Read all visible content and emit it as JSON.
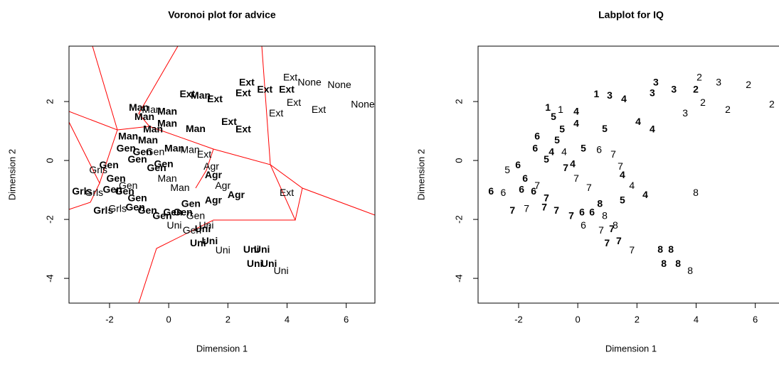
{
  "chart_data": [
    {
      "type": "scatter",
      "title": "Voronoi plot for advice",
      "xlabel": "Dimension 1",
      "ylabel": "Dimension 2",
      "xlim": [
        -3.37,
        6.97
      ],
      "ylim": [
        -4.84,
        3.88
      ],
      "xticks": [
        -2,
        0,
        2,
        4,
        6
      ],
      "yticks": [
        -4,
        -2,
        0,
        2
      ],
      "color": "#000000",
      "voronoi_color": "#ff0000",
      "x": [
        2.64,
        4.11,
        4.76,
        5.77,
        6.56,
        2.52,
        3.25,
        3.99,
        4.23,
        5.07,
        3.63,
        2.52,
        2.04,
        0.63,
        1.08,
        1.56,
        -1.01,
        -0.58,
        -0.82,
        -0.05,
        -0.53,
        -0.05,
        0.91,
        -1.37,
        -0.7,
        0.19,
        0.72,
        1.2,
        -1.44,
        -0.89,
        -0.46,
        -1.06,
        -0.17,
        -2.02,
        -2.38,
        -1.78,
        -0.41,
        -0.05,
        1.51,
        1.44,
        1.83,
        0.38,
        -2.93,
        -2.52,
        -1.9,
        -1.49,
        -1.37,
        -1.06,
        2.28,
        1.51,
        3.99,
        0.75,
        -2.21,
        -1.73,
        -1.13,
        -0.72,
        -0.22,
        0.14,
        0.48,
        0.91,
        1.27,
        0.19,
        0.79,
        1.15,
        0.99,
        1.39,
        1.83,
        2.79,
        3.15,
        2.91,
        3.39,
        3.8
      ],
      "y": [
        2.63,
        2.8,
        2.63,
        2.55,
        1.88,
        2.27,
        2.39,
        2.39,
        1.95,
        1.71,
        1.59,
        1.04,
        1.3,
        2.24,
        2.19,
        2.07,
        1.78,
        1.71,
        1.47,
        1.64,
        1.04,
        1.23,
        1.06,
        0.8,
        0.67,
        0.39,
        0.34,
        0.19,
        0.39,
        0.27,
        0.27,
        0.02,
        -0.14,
        -0.17,
        -0.34,
        -0.63,
        -0.27,
        -0.63,
        -0.51,
        -0.22,
        -0.87,
        -0.94,
        -1.06,
        -1.11,
        -1.01,
        -1.06,
        -0.87,
        -1.3,
        -1.18,
        -1.37,
        -1.11,
        -1.49,
        -1.71,
        -1.66,
        -1.61,
        -1.71,
        -1.9,
        -1.78,
        -1.78,
        -1.9,
        -2.22,
        -2.22,
        -2.39,
        -2.34,
        -2.82,
        -2.75,
        -3.06,
        -3.04,
        -3.04,
        -3.52,
        -3.52,
        -3.76
      ],
      "labels": [
        "Ext",
        "Ext",
        "None",
        "None",
        "None",
        "Ext",
        "Ext",
        "Ext",
        "Ext",
        "Ext",
        "Ext",
        "Ext",
        "Ext",
        "Ext",
        "Man",
        "Ext",
        "Man",
        "Man",
        "Man",
        "Man",
        "Man",
        "Man",
        "Man",
        "Man",
        "Man",
        "Man",
        "Man",
        "Ext",
        "Gen",
        "Gen",
        "Gen",
        "Gen",
        "Gen",
        "Gen",
        "Grls",
        "Gen",
        "Gen",
        "Man",
        "Agr",
        "Agr",
        "Agr",
        "Man",
        "Grls",
        "Grls",
        "Gen",
        "Gen",
        "Gen",
        "Gen",
        "Agr",
        "Agr",
        "Ext",
        "Gen",
        "Grls",
        "Grls",
        "Gen",
        "Gen",
        "Gen",
        "Gen",
        "Gen",
        "Gen",
        "Uni",
        "Uni",
        "Gen",
        "Uni",
        "Uni",
        "Uni",
        "Uni",
        "Uni",
        "Uni",
        "Uni",
        "Uni",
        "Uni"
      ],
      "bold": [
        true,
        false,
        false,
        false,
        false,
        true,
        true,
        true,
        false,
        false,
        false,
        true,
        true,
        true,
        true,
        true,
        true,
        false,
        true,
        true,
        true,
        true,
        true,
        true,
        true,
        true,
        false,
        false,
        true,
        true,
        false,
        true,
        true,
        true,
        false,
        true,
        true,
        false,
        true,
        false,
        false,
        false,
        true,
        false,
        true,
        true,
        false,
        true,
        true,
        true,
        false,
        true,
        true,
        false,
        true,
        true,
        true,
        true,
        true,
        false,
        false,
        false,
        false,
        true,
        true,
        true,
        false,
        true,
        true,
        true,
        true,
        false
      ]
    },
    {
      "type": "scatter",
      "title": "Labplot for IQ",
      "xlabel": "Dimension 1",
      "ylabel": "Dimension 2",
      "xlim": [
        -3.37,
        6.97
      ],
      "ylim": [
        -4.84,
        3.88
      ],
      "xticks": [
        -2,
        0,
        2,
        4,
        6
      ],
      "yticks": [
        -4,
        -2,
        0,
        2
      ],
      "color": "#000000",
      "x": [
        2.64,
        4.11,
        4.76,
        5.77,
        6.56,
        2.52,
        3.25,
        3.99,
        4.23,
        5.07,
        3.63,
        2.52,
        2.04,
        0.63,
        1.08,
        1.56,
        -1.01,
        -0.58,
        -0.82,
        -0.05,
        -0.53,
        -0.05,
        0.91,
        -1.37,
        -0.7,
        0.19,
        0.72,
        1.2,
        -1.44,
        -0.89,
        -0.46,
        -1.06,
        -0.17,
        -2.02,
        -2.38,
        -1.78,
        -0.41,
        -0.05,
        1.51,
        1.44,
        1.83,
        0.38,
        -2.93,
        -2.52,
        -1.9,
        -1.49,
        -1.37,
        -1.06,
        2.28,
        1.51,
        3.99,
        0.75,
        -2.21,
        -1.73,
        -1.13,
        -0.72,
        -0.22,
        0.14,
        0.48,
        0.91,
        1.27,
        0.19,
        0.79,
        1.15,
        0.99,
        1.39,
        1.83,
        2.79,
        3.15,
        2.91,
        3.39,
        3.8
      ],
      "y": [
        2.63,
        2.8,
        2.63,
        2.55,
        1.88,
        2.27,
        2.39,
        2.39,
        1.95,
        1.71,
        1.59,
        1.04,
        1.3,
        2.24,
        2.19,
        2.07,
        1.78,
        1.71,
        1.47,
        1.64,
        1.04,
        1.23,
        1.06,
        0.8,
        0.67,
        0.39,
        0.34,
        0.19,
        0.39,
        0.27,
        0.27,
        0.02,
        -0.14,
        -0.17,
        -0.34,
        -0.63,
        -0.27,
        -0.63,
        -0.51,
        -0.22,
        -0.87,
        -0.94,
        -1.06,
        -1.11,
        -1.01,
        -1.06,
        -0.87,
        -1.3,
        -1.18,
        -1.37,
        -1.11,
        -1.49,
        -1.71,
        -1.66,
        -1.61,
        -1.71,
        -1.9,
        -1.78,
        -1.78,
        -1.9,
        -2.22,
        -2.22,
        -2.39,
        -2.34,
        -2.82,
        -2.75,
        -3.06,
        -3.04,
        -3.04,
        -3.52,
        -3.52,
        -3.76
      ],
      "labels": [
        "3",
        "2",
        "3",
        "2",
        "2",
        "3",
        "3",
        "2",
        "2",
        "2",
        "3",
        "4",
        "4",
        "1",
        "3",
        "4",
        "1",
        "1",
        "5",
        "4",
        "5",
        "4",
        "5",
        "6",
        "5",
        "5",
        "6",
        "7",
        "6",
        "4",
        "4",
        "5",
        "4",
        "6",
        "5",
        "6",
        "7",
        "7",
        "4",
        "7",
        "4",
        "7",
        "6",
        "6",
        "6",
        "6",
        "7",
        "7",
        "4",
        "5",
        "8",
        "8",
        "7",
        "7",
        "7",
        "7",
        "7",
        "6",
        "6",
        "8",
        "8",
        "6",
        "7",
        "7",
        "7",
        "7",
        "7",
        "8",
        "8",
        "8",
        "8",
        "8"
      ],
      "bold": [
        true,
        false,
        false,
        false,
        false,
        true,
        true,
        true,
        false,
        false,
        false,
        true,
        true,
        true,
        true,
        true,
        true,
        false,
        true,
        true,
        true,
        true,
        true,
        true,
        true,
        true,
        false,
        false,
        true,
        true,
        false,
        true,
        true,
        true,
        false,
        true,
        true,
        false,
        true,
        false,
        false,
        false,
        true,
        false,
        true,
        true,
        false,
        true,
        true,
        true,
        false,
        true,
        true,
        false,
        true,
        true,
        true,
        true,
        true,
        false,
        false,
        false,
        false,
        true,
        true,
        true,
        false,
        true,
        true,
        true,
        true,
        false
      ]
    }
  ]
}
